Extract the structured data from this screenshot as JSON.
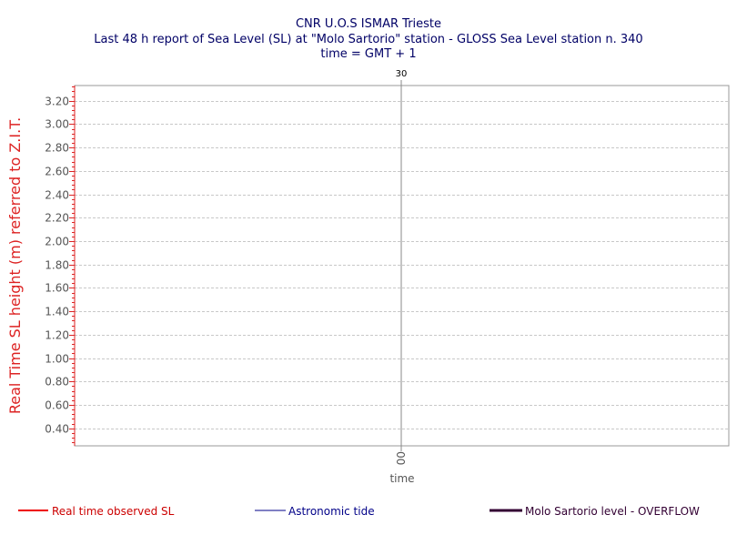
{
  "chart_data": {
    "type": "line",
    "title": "CNR U.O.S ISMAR Trieste",
    "subtitle": "Last 48 h report of Sea Level (SL) at \"Molo Sartorio\" station - GLOSS Sea Level station n. 340",
    "subtitle2": "time = GMT + 1",
    "xlabel": "time",
    "ylabel": "Real Time SL height (m) referred to Z.I.T.",
    "ylim": [
      0.25,
      3.33
    ],
    "y_ticks": [
      0.4,
      0.6,
      0.8,
      1.0,
      1.2,
      1.4,
      1.6,
      1.8,
      2.0,
      2.2,
      2.4,
      2.6,
      2.8,
      3.0,
      3.2
    ],
    "y_tick_labels": [
      "0.40",
      "0.60",
      "0.80",
      "1.00",
      "1.20",
      "1.40",
      "1.60",
      "1.80",
      "2.00",
      "2.20",
      "2.40",
      "2.60",
      "2.80",
      "3.00",
      "3.20"
    ],
    "x_day_marker": "30",
    "x_hour_label": "00",
    "grid": true,
    "legend_placement": "bottom",
    "series": [
      {
        "name": "Real time observed SL",
        "color": "#ee0000",
        "values": []
      },
      {
        "name": "Astronomic tide",
        "color": "#000088",
        "values": []
      },
      {
        "name": "Molo Sartorio level - OVERFLOW",
        "color": "#330033",
        "values": []
      }
    ]
  }
}
